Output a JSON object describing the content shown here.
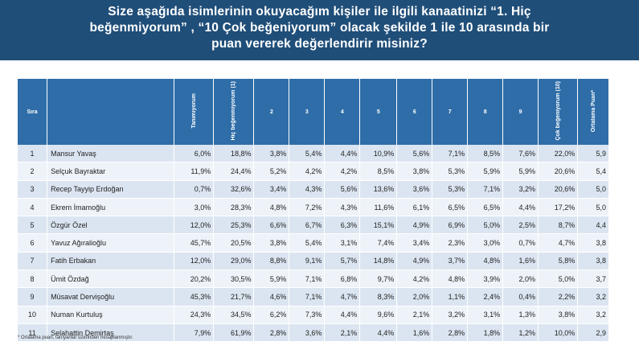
{
  "header": {
    "line1": "Size aşağıda isimlerinin okuyacağım kişiler ile ilgili kanaatinizi “1. Hiç",
    "line2": "beğenmiyorum” , “10 Çok beğeniyorum” olacak şekilde 1 ile 10 arasında bir",
    "line3": "puan vererek değerlendirir misiniz?"
  },
  "table": {
    "columns": [
      "Sıra",
      "",
      "Tanımıyorum",
      "Hiç beğenmiyorum (1)",
      "2",
      "3",
      "4",
      "5",
      "6",
      "7",
      "8",
      "9",
      "Çok beğeniyorum (10)",
      "Ortalama Puan*"
    ],
    "rows": [
      [
        "1",
        "Mansur Yavaş",
        "6,0%",
        "18,8%",
        "3,8%",
        "5,4%",
        "4,4%",
        "10,9%",
        "5,6%",
        "7,1%",
        "8,5%",
        "7,6%",
        "22,0%",
        "5,9"
      ],
      [
        "2",
        "Selçuk Bayraktar",
        "11,9%",
        "24,4%",
        "5,2%",
        "4,2%",
        "4,2%",
        "8,5%",
        "3,8%",
        "5,3%",
        "5,9%",
        "5,9%",
        "20,6%",
        "5,4"
      ],
      [
        "3",
        "Recep Tayyip Erdoğan",
        "0,7%",
        "32,6%",
        "3,4%",
        "4,3%",
        "5,6%",
        "13,6%",
        "3,6%",
        "5,3%",
        "7,1%",
        "3,2%",
        "20,6%",
        "5,0"
      ],
      [
        "4",
        "Ekrem İmamoğlu",
        "3,0%",
        "28,3%",
        "4,8%",
        "7,2%",
        "4,3%",
        "11,6%",
        "6,1%",
        "6,5%",
        "6,5%",
        "4,4%",
        "17,2%",
        "5,0"
      ],
      [
        "5",
        "Özgür Özel",
        "12,0%",
        "25,3%",
        "6,6%",
        "6,7%",
        "6,3%",
        "15,1%",
        "4,9%",
        "6,9%",
        "5,0%",
        "2,5%",
        "8,7%",
        "4,4"
      ],
      [
        "6",
        "Yavuz Ağıralioğlu",
        "45,7%",
        "20,5%",
        "3,8%",
        "5,4%",
        "3,1%",
        "7,4%",
        "3,4%",
        "2,3%",
        "3,0%",
        "0,7%",
        "4,7%",
        "3,8"
      ],
      [
        "7",
        "Fatih Erbakan",
        "12,0%",
        "29,0%",
        "8,8%",
        "9,1%",
        "5,7%",
        "14,8%",
        "4,9%",
        "3,7%",
        "4,8%",
        "1,6%",
        "5,8%",
        "3,8"
      ],
      [
        "8",
        "Ümit Özdağ",
        "20,2%",
        "30,5%",
        "5,9%",
        "7,1%",
        "6,8%",
        "9,7%",
        "4,2%",
        "4,8%",
        "3,9%",
        "2,0%",
        "5,0%",
        "3,7"
      ],
      [
        "9",
        "Müsavat Dervişoğlu",
        "45,3%",
        "21,7%",
        "4,6%",
        "7,1%",
        "4,7%",
        "8,3%",
        "2,0%",
        "1,1%",
        "2,4%",
        "0,4%",
        "2,2%",
        "3,2"
      ],
      [
        "10",
        "Numan Kurtuluş",
        "24,3%",
        "34,5%",
        "6,2%",
        "7,3%",
        "4,4%",
        "9,6%",
        "2,1%",
        "3,2%",
        "3,1%",
        "1,3%",
        "3,8%",
        "3,2"
      ],
      [
        "11",
        "Selahattin Demirtaş",
        "7,9%",
        "61,9%",
        "2,8%",
        "3,6%",
        "2,1%",
        "4,4%",
        "1,6%",
        "2,8%",
        "1,8%",
        "1,2%",
        "10,0%",
        "2,9"
      ]
    ]
  },
  "footnote": "* Ortalama puan, tanıyanlar üzerinden hesaplanmıştır."
}
